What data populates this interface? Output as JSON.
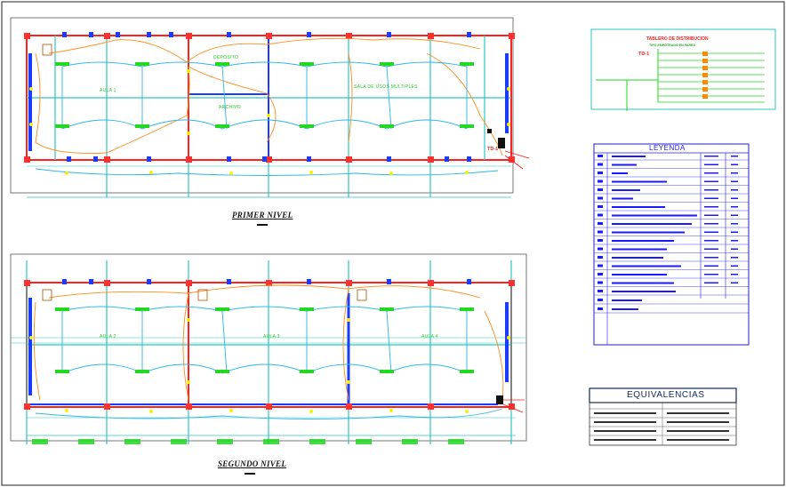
{
  "plans": {
    "primer": {
      "title": "PRIMER NIVEL",
      "rooms": {
        "aula": "AULA 1",
        "deposito": "DEPOSITO",
        "archivo": "ARCHIVO",
        "sum": "SALA DE USOS MULTIPLES"
      },
      "panel_tag": "TD-1"
    },
    "segundo": {
      "title": "SEGUNDO NIVEL",
      "rooms": {
        "aula_a": "AULA 2",
        "aula_b": "AULA 3",
        "aula_c": "AULA 4"
      }
    }
  },
  "tablero": {
    "title": "TABLERO DE DISTRIBUCION",
    "subtitle": "TIPO EMPOTRADO EN PARED",
    "tag": "TD-1"
  },
  "leyenda": {
    "title": "LEYENDA"
  },
  "equivalencias": {
    "title": "EQUIVALENCIAS"
  },
  "colors": {
    "wall": "#ff2020",
    "column": "#ff3030",
    "grid": "#2ec4c4",
    "circuit_orange": "#ff8c1a",
    "circuit_cyan": "#2bb8e8",
    "fixture_green": "#22d822",
    "fixture_yellow": "#ffee00",
    "door_blue": "#1a3cff",
    "legend_blue": "#1a1aff"
  }
}
